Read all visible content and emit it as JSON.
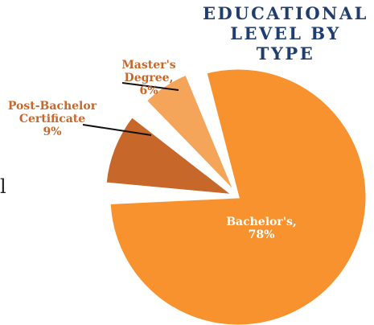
{
  "chart_data": {
    "type": "pie",
    "title": "EDUCATIONAL LEVEL BY TYPE",
    "categories": [
      "Bachelor's,",
      "Post-Bachelor Certificate",
      "Master's Degree,"
    ],
    "values": [
      78,
      9,
      6
    ],
    "value_labels": [
      "78%",
      "9%",
      "6%"
    ],
    "colors": [
      "#f7922e",
      "#c8672a",
      "#f5a55a"
    ]
  },
  "side_text": "l"
}
